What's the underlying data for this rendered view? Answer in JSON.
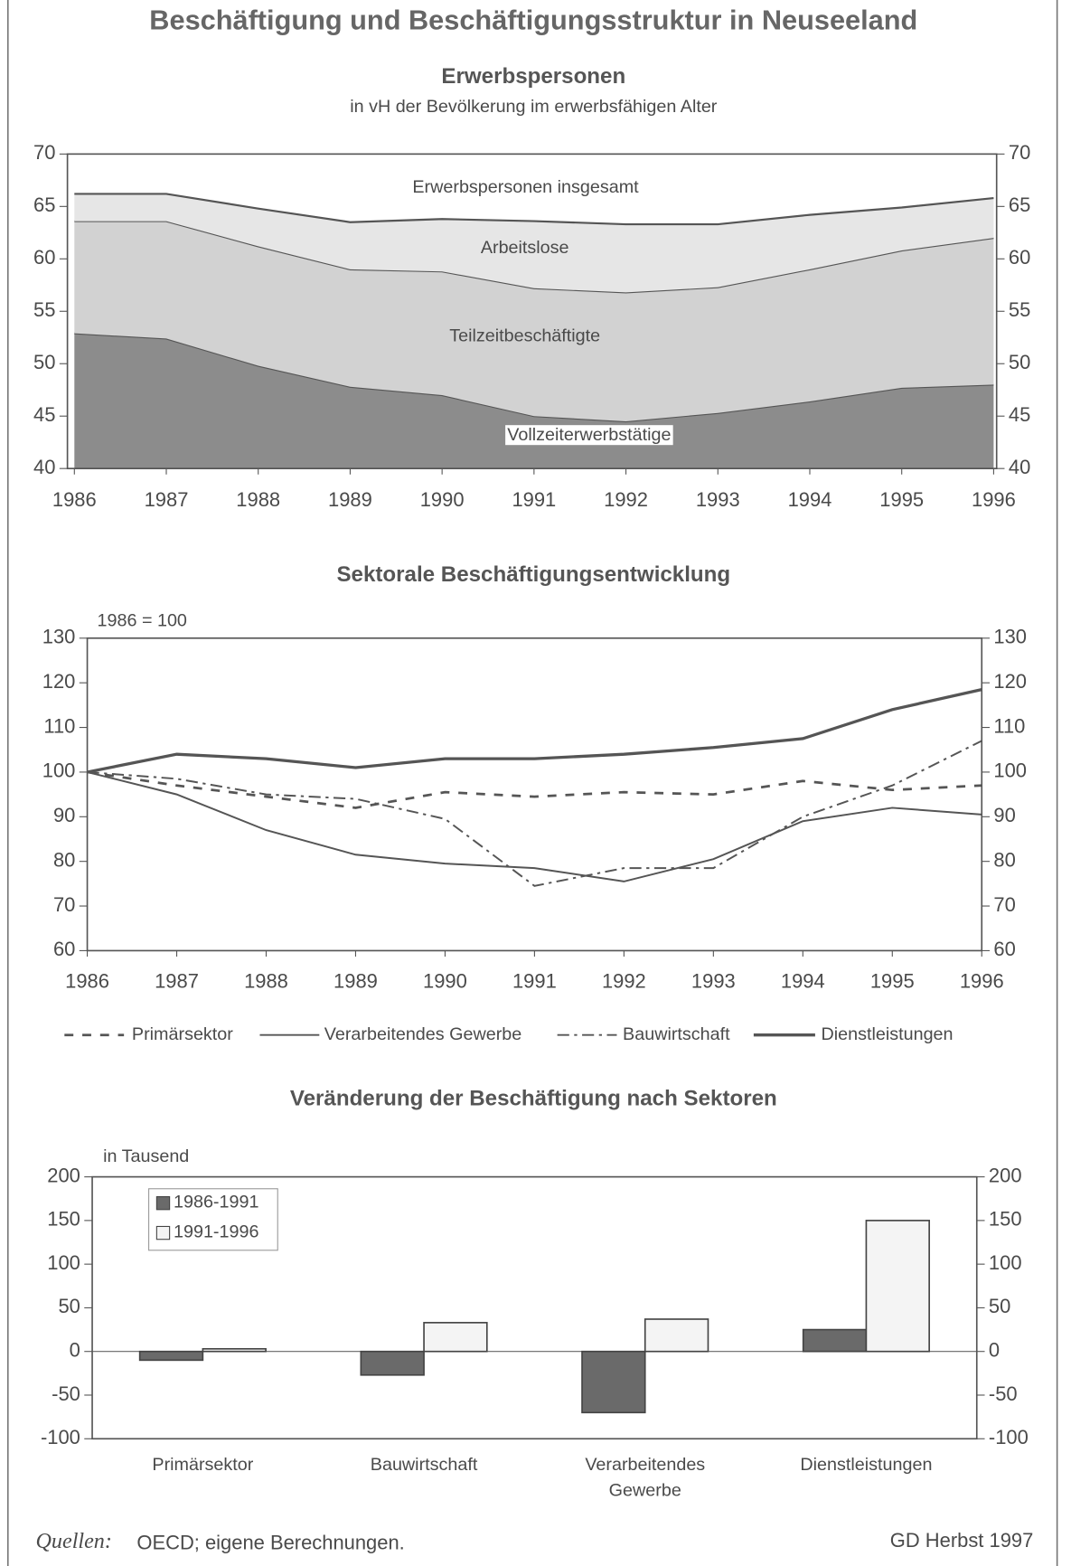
{
  "title": "Beschäftigung und Beschäftigungsstruktur in Neuseeland",
  "source_label": "Quellen:",
  "source": "OECD; eigene Berechnungen.",
  "credit": "GD Herbst 1997",
  "chart_data": [
    {
      "type": "area",
      "stacked": true,
      "title": "Erwerbspersonen",
      "subtitle": "in vH der Bevölkerung im erwerbsfähigen Alter",
      "annotation": "Erwerbspersonen insgesamt",
      "x": [
        1986,
        1987,
        1988,
        1989,
        1990,
        1991,
        1992,
        1993,
        1994,
        1995,
        1996
      ],
      "xticks": [
        1986,
        1987,
        1988,
        1989,
        1990,
        1991,
        1992,
        1993,
        1994,
        1995,
        1996
      ],
      "xlim": [
        1986,
        1996
      ],
      "ylim": [
        40,
        70
      ],
      "yticks": [
        40,
        45,
        50,
        55,
        60,
        65,
        70
      ],
      "y2lim": [
        40,
        70
      ],
      "y2ticks": [
        40,
        45,
        50,
        55,
        60,
        65,
        70
      ],
      "series": [
        {
          "name": "Vollzeiterwerbstätige",
          "color": "#8c8c8c",
          "values": [
            52.9,
            52.4,
            49.8,
            47.8,
            47.0,
            45.0,
            44.5,
            45.3,
            46.4,
            47.7,
            48.0
          ]
        },
        {
          "name": "Teilzeitbeschäftigte",
          "color": "#d2d2d2",
          "values": [
            10.7,
            11.2,
            11.4,
            11.2,
            11.8,
            12.2,
            12.3,
            12.0,
            12.6,
            13.1,
            14.0
          ]
        },
        {
          "name": "Arbeitslose",
          "color": "#e6e6e6",
          "values": [
            2.6,
            2.6,
            3.6,
            4.5,
            5.0,
            6.4,
            6.5,
            6.0,
            5.2,
            4.1,
            3.8
          ]
        }
      ]
    },
    {
      "type": "line",
      "title": "Sektorale Beschäftigungsentwicklung",
      "annotation": "1986 = 100",
      "x": [
        1986,
        1987,
        1988,
        1989,
        1990,
        1991,
        1992,
        1993,
        1994,
        1995,
        1996
      ],
      "xticks": [
        1986,
        1987,
        1988,
        1989,
        1990,
        1991,
        1992,
        1993,
        1994,
        1995,
        1996
      ],
      "xlim": [
        1986,
        1996
      ],
      "ylim": [
        60,
        130
      ],
      "yticks": [
        60,
        70,
        80,
        90,
        100,
        110,
        120,
        130
      ],
      "y2lim": [
        60,
        130
      ],
      "y2ticks": [
        60,
        70,
        80,
        90,
        100,
        110,
        120,
        130
      ],
      "legend": "bottom",
      "series": [
        {
          "name": "Primärsektor",
          "color": "#555555",
          "style": "dashed",
          "values": [
            100,
            97,
            94.5,
            92,
            95.5,
            94.5,
            95.5,
            95,
            98,
            96,
            97
          ]
        },
        {
          "name": "Verarbeitendes Gewerbe",
          "color": "#555555",
          "style": "solid",
          "values": [
            100,
            95,
            87,
            81.5,
            79.5,
            78.5,
            75.5,
            80.5,
            89,
            92,
            90.5
          ]
        },
        {
          "name": "Bauwirtschaft",
          "color": "#555555",
          "style": "dashdot",
          "values": [
            100,
            98.5,
            95,
            94,
            89.5,
            74.5,
            78.5,
            78.5,
            90,
            97,
            107
          ]
        },
        {
          "name": "Dienstleistungen",
          "color": "#555555",
          "style": "thick",
          "values": [
            100,
            104,
            103,
            101,
            103,
            103,
            104,
            105.5,
            107.5,
            114,
            118.5
          ]
        }
      ]
    },
    {
      "type": "bar",
      "title": "Veränderung der Beschäftigung nach Sektoren",
      "annotation": "in Tausend",
      "categories": [
        "Primärsektor",
        "Bauwirtschaft",
        "Verarbeitendes Gewerbe",
        "Dienstleistungen"
      ],
      "ylim": [
        -100,
        200
      ],
      "yticks": [
        -100,
        -50,
        0,
        50,
        100,
        150,
        200
      ],
      "y2lim": [
        -100,
        200
      ],
      "y2ticks": [
        -100,
        -50,
        0,
        50,
        100,
        150,
        200
      ],
      "legend": "top-left",
      "series": [
        {
          "name": "1986-1991",
          "color": "#6a6a6a",
          "values": [
            -10,
            -27,
            -70,
            25
          ]
        },
        {
          "name": "1991-1996",
          "color": "#f4f4f4",
          "values": [
            3,
            33,
            37,
            150
          ]
        }
      ]
    }
  ]
}
